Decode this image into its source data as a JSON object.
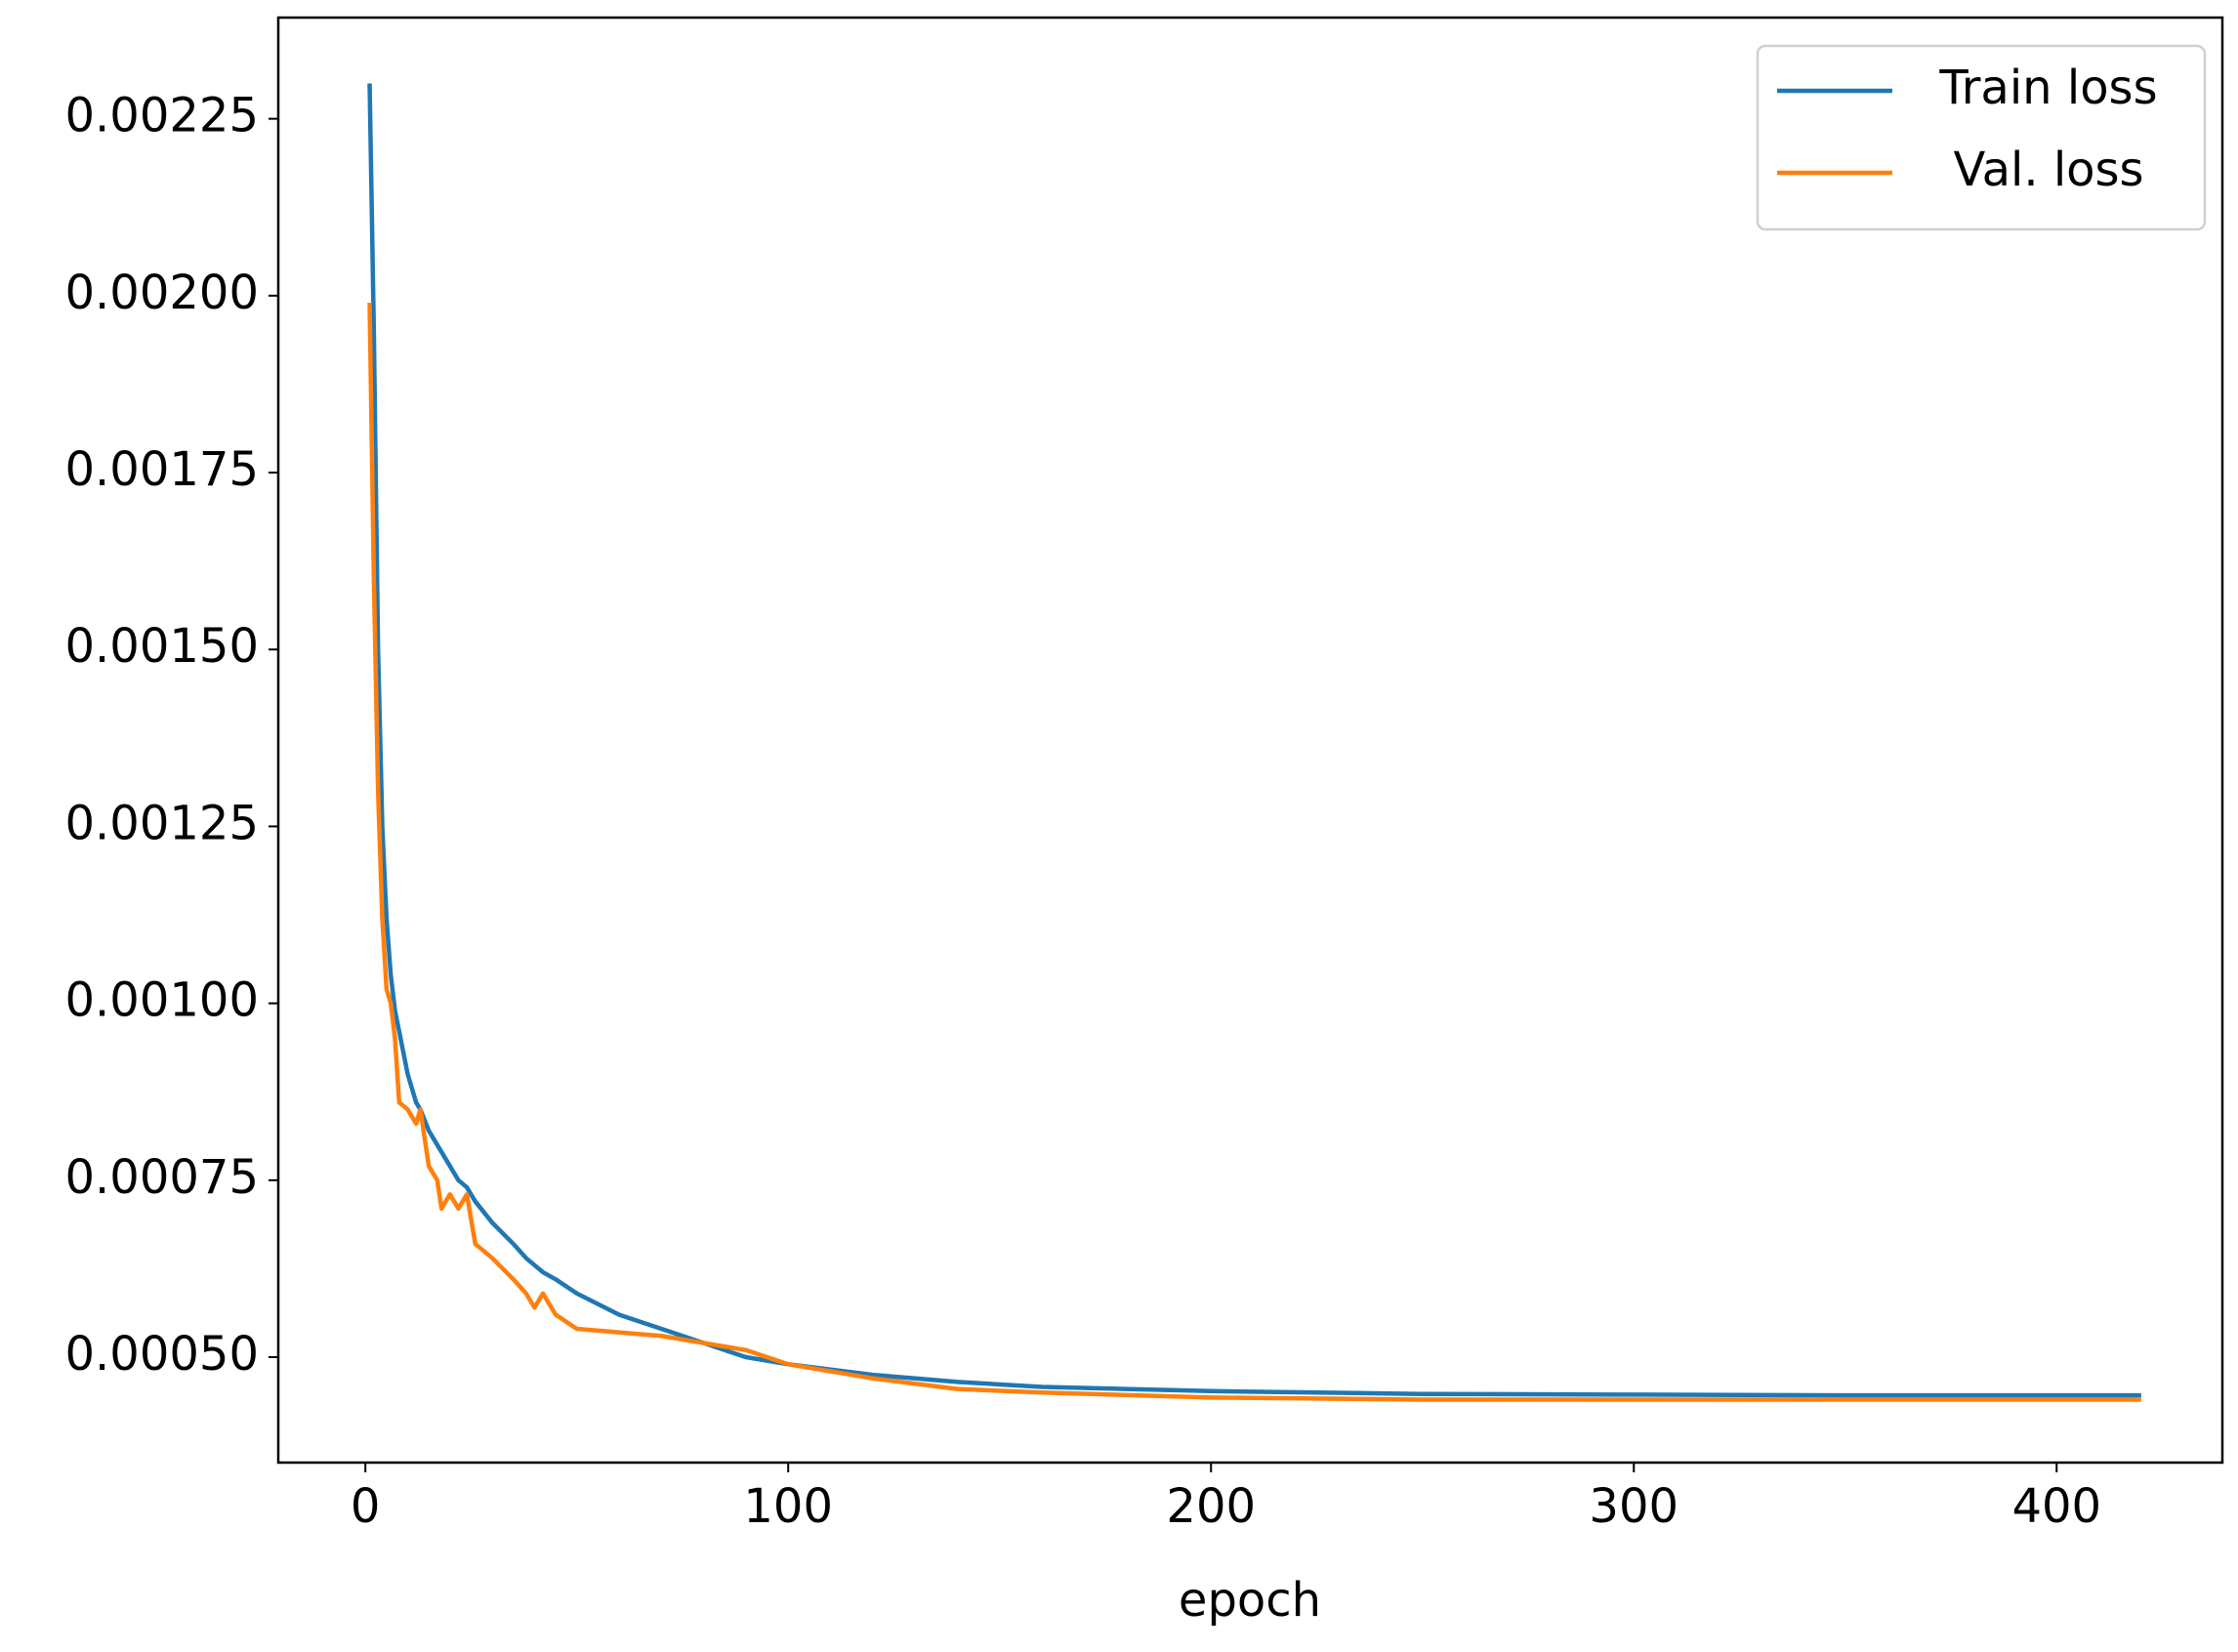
{
  "chart_data": {
    "type": "line",
    "xlabel": "epoch",
    "x": [
      1,
      2,
      3,
      4,
      5,
      6,
      7,
      8,
      10,
      12,
      13,
      15,
      17,
      18,
      20,
      22,
      24,
      26,
      30,
      35,
      38,
      40,
      42,
      45,
      50,
      60,
      70,
      80,
      90,
      100,
      120,
      140,
      160,
      200,
      250,
      300,
      350,
      420
    ],
    "series": [
      {
        "name": "Train loss",
        "color": "#1f77b4",
        "values": [
          0.0023,
          0.00195,
          0.0015,
          0.00125,
          0.00112,
          0.00104,
          0.00099,
          0.00096,
          0.0009,
          0.00086,
          0.00085,
          0.00082,
          0.0008,
          0.00079,
          0.00077,
          0.00075,
          0.00074,
          0.00072,
          0.00069,
          0.00066,
          0.00064,
          0.00063,
          0.00062,
          0.00061,
          0.00059,
          0.00056,
          0.00054,
          0.00052,
          0.0005,
          0.00049,
          0.000475,
          0.000465,
          0.000458,
          0.000452,
          0.000448,
          0.000447,
          0.000446,
          0.000446
        ]
      },
      {
        "name": "Val. loss",
        "color": "#ff7f0e",
        "values": [
          0.00199,
          0.0016,
          0.0013,
          0.00112,
          0.00102,
          0.001,
          0.00095,
          0.00086,
          0.00085,
          0.00083,
          0.00085,
          0.00077,
          0.00075,
          0.00071,
          0.00073,
          0.00071,
          0.00073,
          0.00066,
          0.00064,
          0.00061,
          0.00059,
          0.00057,
          0.00059,
          0.00056,
          0.00054,
          0.000535,
          0.00053,
          0.00052,
          0.00051,
          0.00049,
          0.00047,
          0.000455,
          0.00045,
          0.000443,
          0.00044,
          0.00044,
          0.00044,
          0.00044
        ]
      }
    ],
    "xlim": [
      -20.6,
      439.2
    ],
    "xticks": [
      0,
      100,
      200,
      300,
      400
    ],
    "ylim": [
      0.000351,
      0.002393
    ],
    "yticks": [
      {
        "value": 0.0005,
        "label": "0.00050"
      },
      {
        "value": 0.00075,
        "label": "0.00075"
      },
      {
        "value": 0.001,
        "label": "0.00100"
      },
      {
        "value": 0.00125,
        "label": "0.00125"
      },
      {
        "value": 0.0015,
        "label": "0.00150"
      },
      {
        "value": 0.00175,
        "label": "0.00175"
      },
      {
        "value": 0.002,
        "label": "0.00200"
      },
      {
        "value": 0.00225,
        "label": "0.00225"
      }
    ],
    "grid": false,
    "legend": "upper right"
  }
}
